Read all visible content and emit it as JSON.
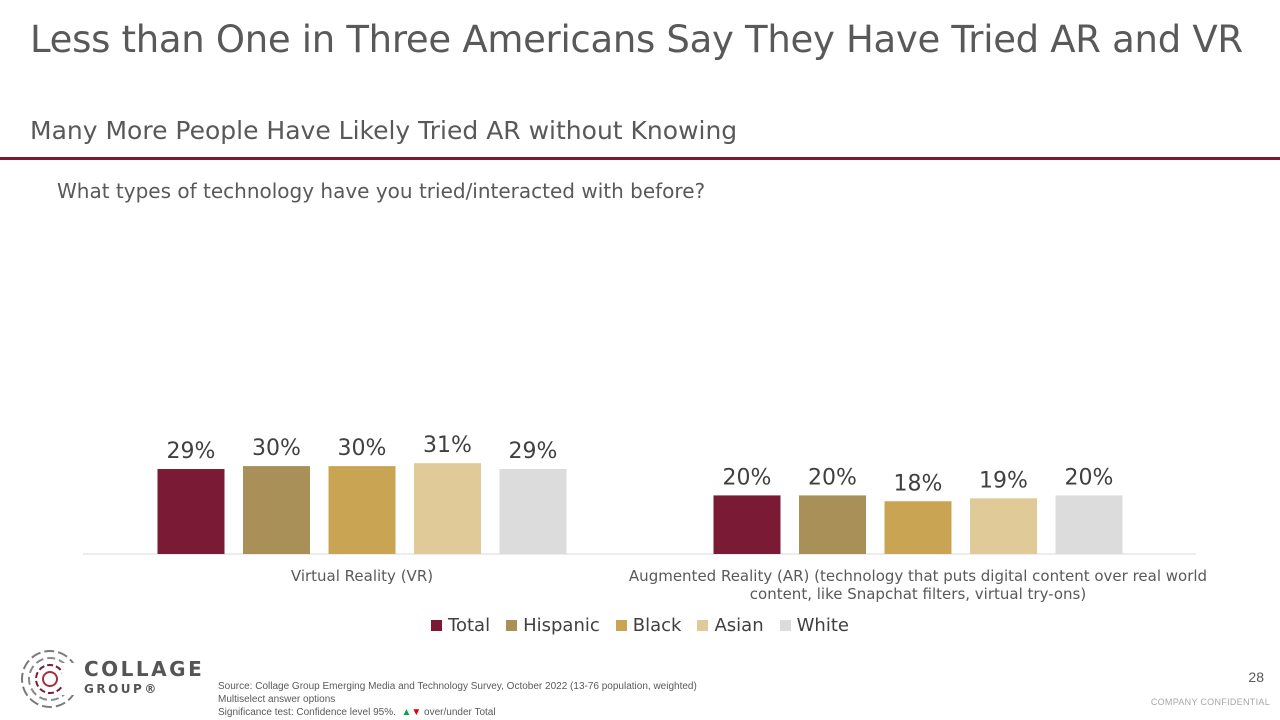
{
  "header": {
    "title": "Less than One in Three Americans Say They Have Tried AR and VR",
    "subtitle": "Many More People Have Likely Tried AR without Knowing"
  },
  "question": "What types of technology have you tried/interacted with before?",
  "colors": {
    "accent_rule": "#7b1a34",
    "Total": "#7b1a34",
    "Hispanic": "#a89058",
    "Black": "#c9a553",
    "Asian": "#e0ca98",
    "White": "#dcdcdc"
  },
  "chart_data": {
    "type": "bar",
    "categories": [
      [
        "Virtual Reality (VR)"
      ],
      [
        "Augmented Reality (AR) (technology that puts digital content over real world",
        "content, like Snapchat filters, virtual try-ons)"
      ]
    ],
    "series": [
      {
        "name": "Total",
        "values": [
          29,
          20
        ]
      },
      {
        "name": "Hispanic",
        "values": [
          30,
          20
        ]
      },
      {
        "name": "Black",
        "values": [
          30,
          18
        ]
      },
      {
        "name": "Asian",
        "values": [
          31,
          19
        ]
      },
      {
        "name": "White",
        "values": [
          29,
          20
        ]
      }
    ],
    "value_format": "%",
    "grid": false,
    "legend_position": "bottom"
  },
  "logo": {
    "line1": "COLLAGE",
    "line2": "GROUP®"
  },
  "footer": {
    "source": "Source: Collage Group Emerging Media and Technology Survey, October 2022 (13-76 population, weighted)",
    "note": "Multiselect answer options",
    "sig_prefix": "Significance test: Confidence level 95%.",
    "sig_up": "▲",
    "sig_down": "▼",
    "sig_suffix": "over/under Total",
    "page_number": "28",
    "confidential": "COMPANY CONFIDENTIAL"
  }
}
